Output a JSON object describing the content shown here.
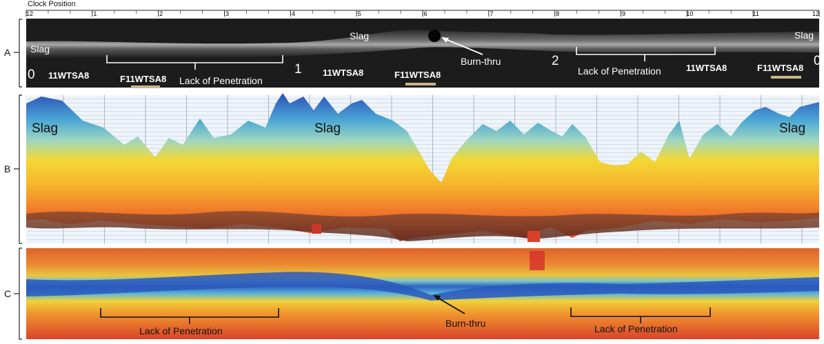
{
  "axis": {
    "title": "Clock Position",
    "ticks": [
      "12",
      "1",
      "2",
      "3",
      "4",
      "5",
      "6",
      "7",
      "8",
      "9",
      "10",
      "11",
      "12"
    ]
  },
  "panels": {
    "a": {
      "letter": "A",
      "labels": {
        "slag_left": "Slag",
        "slag_mid": "Slag",
        "slag_right": "Slag",
        "lop_left": "Lack of Penetration",
        "lop_right": "Lack of Penetration",
        "burn_thru": "Burn-thru"
      },
      "film_marks": {
        "m0_left": "0",
        "m1": "1",
        "m2": "2",
        "m0_right": "0",
        "iqi1": "11WTSA8",
        "iqi2": "F11WTSA8",
        "iqi3": "11WTSA8",
        "iqi4": "F11WTSA8",
        "iqi5": "11WTSA8",
        "iqi6": "F11WTSA8"
      }
    },
    "b": {
      "letter": "B",
      "labels": {
        "slag_left": "Slag",
        "slag_mid": "Slag",
        "slag_right": "Slag"
      }
    },
    "c": {
      "letter": "C",
      "labels": {
        "lop_left": "Lack of Penetration",
        "lop_right": "Lack of Penetration",
        "burn_thru": "Burn-thru"
      }
    }
  },
  "colors": {
    "blue": "#2a4fb8",
    "cyan": "#58c0dc",
    "yellow": "#f2d531",
    "orange": "#f08a2a",
    "red": "#d63b23",
    "brown": "#7a3b28",
    "film_dark": "#1e1e1e",
    "film_light": "#d8d8d8",
    "grid": "#b9c7d6"
  }
}
